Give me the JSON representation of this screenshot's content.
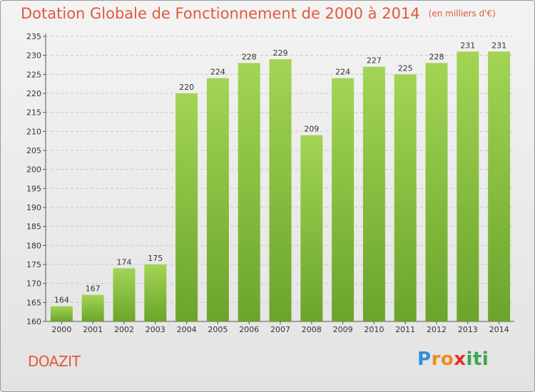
{
  "title": "Dotation Globale de Fonctionnement de 2000 à 2014",
  "unit": "(en milliers d'€)",
  "place": "DOAZIT",
  "logo": {
    "letters": [
      "P",
      "r",
      "o",
      "x",
      "i",
      "t",
      "i"
    ],
    "colors": [
      "#2f8fd8",
      "#f08a1c",
      "#f08a1c",
      "#e0312b",
      "#3aa64a",
      "#3aa64a",
      "#3aa64a"
    ]
  },
  "colors": {
    "bar_light": "#a3d455",
    "bar_dark": "#6aa52a",
    "title": "#e05a3a",
    "grid": "#c8c8c8"
  },
  "chart_data": {
    "type": "bar",
    "title": "Dotation Globale de Fonctionnement de 2000 à 2014",
    "subtitle": "(en milliers d'€)",
    "xlabel": "",
    "ylabel": "",
    "ylim": [
      160,
      235
    ],
    "yticks": [
      160,
      165,
      170,
      175,
      180,
      185,
      190,
      195,
      200,
      205,
      210,
      215,
      220,
      225,
      230,
      235
    ],
    "categories": [
      "2000",
      "2001",
      "2002",
      "2003",
      "2004",
      "2005",
      "2006",
      "2007",
      "2008",
      "2009",
      "2010",
      "2011",
      "2012",
      "2013",
      "2014"
    ],
    "values": [
      164,
      167,
      174,
      175,
      220,
      224,
      228,
      229,
      209,
      224,
      227,
      225,
      228,
      231,
      231
    ],
    "grid": true
  }
}
